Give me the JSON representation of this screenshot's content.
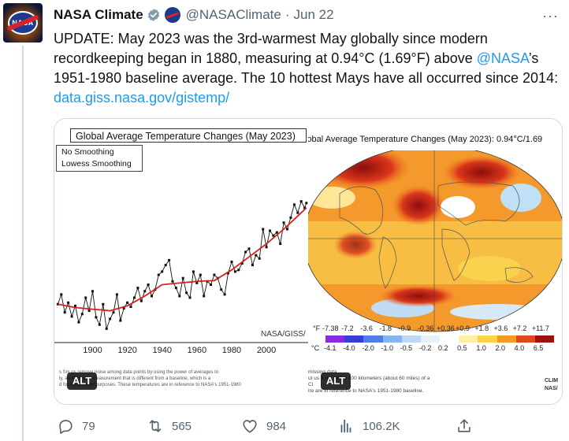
{
  "author": {
    "name": "NASA Climate",
    "handle": "@NASAClimate",
    "separator": "·",
    "date": "Jun 22"
  },
  "more_label": "···",
  "tweet": {
    "text_before_mention": "UPDATE: May 2023 was the 3rd-warmest May globally since modern recordkeeping began in 1880, measuring at 0.94°C (1.69°F) above ",
    "mention": "@NASA",
    "text_after_mention": "’s 1951-1980 baseline average. The 10 hottest Mays have all occurred since 2014: ",
    "link": "data.giss.nasa.gov/gistemp/"
  },
  "media": {
    "left": {
      "title": "Global Average Temperature Changes (May 2023)",
      "legend": [
        "No Smoothing",
        "Lowess Smoothing"
      ],
      "credit": "NASA/GISS/",
      "x_ticks": [
        "1900",
        "1920",
        "1940",
        "1960",
        "1980",
        "2000"
      ],
      "footnote_lines": [
        "s Sm            ps remove noise among data points by using the power of averages to",
        "ly, an            efers to a measurement that is different from a baseline, which is a",
        "d for comparison purposes. These temperatures are in reference to NASA's 1951-1980"
      ],
      "alt": "ALT"
    },
    "right": {
      "title": "lobal Average Temperature Changes (May 2023): 0.94°C/1.69",
      "f_label": "°F",
      "c_label": "°C",
      "f_ticks": [
        "-7.38",
        "-7.2",
        "-3.6",
        "-1.8",
        "-0.9",
        "-0.36",
        "+0.36",
        "+0.9",
        "+1.8",
        "+3.6",
        "+7.2",
        "+11.7"
      ],
      "c_ticks": [
        "-4.1",
        "-4.0",
        "-2.0",
        "-1.0",
        "-0.5",
        "-0.2",
        "0.2",
        "0.5",
        "1.0",
        "2.0",
        "4.0",
        "6.5"
      ],
      "colorbar_colors": [
        "#8a2be2",
        "#3b3bd6",
        "#4f7ee8",
        "#88b4f0",
        "#bcd8f5",
        "#e6f0f8",
        "#ffffff",
        "#fff0a8",
        "#ffd24a",
        "#f59a23",
        "#e0481c",
        "#9c1010"
      ],
      "footnote_lines": [
        "missing data",
        "ut us            d nor within 100 kilometers (about 60 miles) of a",
        "Cl           ",
        "ire are in reference to NASA's 1951-1980 baseline."
      ],
      "corner_text": [
        "CLIM",
        "NAS/"
      ],
      "alt": "ALT"
    }
  },
  "chart_data": {
    "type": "line",
    "title": "Global Average Temperature Changes (May 2023)",
    "xlabel": "",
    "ylabel": "",
    "x_range": [
      1878,
      2024
    ],
    "series": [
      {
        "name": "No Smoothing",
        "x": [
          1880,
          1882,
          1884,
          1886,
          1888,
          1890,
          1892,
          1894,
          1896,
          1898,
          1900,
          1902,
          1904,
          1906,
          1908,
          1910,
          1912,
          1914,
          1916,
          1918,
          1920,
          1922,
          1924,
          1926,
          1928,
          1930,
          1932,
          1934,
          1936,
          1938,
          1940,
          1942,
          1944,
          1946,
          1948,
          1950,
          1952,
          1954,
          1956,
          1958,
          1960,
          1962,
          1964,
          1966,
          1968,
          1970,
          1972,
          1974,
          1976,
          1978,
          1980,
          1982,
          1984,
          1986,
          1988,
          1990,
          1992,
          1994,
          1996,
          1998,
          2000,
          2002,
          2004,
          2006,
          2008,
          2010,
          2012,
          2014,
          2016,
          2018,
          2020,
          2022,
          2023
        ],
        "y": [
          -0.3,
          -0.18,
          -0.4,
          -0.28,
          -0.45,
          -0.32,
          -0.52,
          -0.42,
          -0.22,
          -0.38,
          -0.14,
          -0.46,
          -0.55,
          -0.3,
          -0.6,
          -0.48,
          -0.4,
          -0.18,
          -0.5,
          -0.35,
          -0.28,
          -0.33,
          -0.22,
          -0.1,
          -0.26,
          -0.14,
          -0.06,
          -0.2,
          -0.12,
          0.06,
          0.1,
          0.18,
          0.24,
          -0.02,
          -0.1,
          -0.2,
          0.02,
          -0.16,
          -0.22,
          0.1,
          -0.04,
          0.06,
          -0.2,
          -0.02,
          -0.06,
          0.06,
          0.02,
          -0.12,
          -0.18,
          0.08,
          0.22,
          0.1,
          0.12,
          0.2,
          0.34,
          0.38,
          0.18,
          0.3,
          0.26,
          0.62,
          0.4,
          0.6,
          0.54,
          0.58,
          0.44,
          0.7,
          0.62,
          0.76,
          0.92,
          0.82,
          0.96,
          0.88,
          0.94
        ]
      },
      {
        "name": "Lowess Smoothing",
        "x": [
          1880,
          1890,
          1900,
          1910,
          1920,
          1930,
          1940,
          1950,
          1960,
          1970,
          1980,
          1990,
          2000,
          2010,
          2020,
          2023
        ],
        "y": [
          -0.3,
          -0.34,
          -0.36,
          -0.38,
          -0.32,
          -0.2,
          -0.06,
          -0.04,
          -0.02,
          -0.01,
          0.12,
          0.28,
          0.44,
          0.62,
          0.82,
          0.88
        ]
      }
    ]
  },
  "actions": {
    "reply_count": "79",
    "retweet_count": "565",
    "like_count": "984",
    "views_count": "106.2K"
  },
  "colors": {
    "link": "#1d9bf0",
    "muted": "#536471",
    "verified": "#829aab",
    "smooth_line": "#d42020"
  }
}
